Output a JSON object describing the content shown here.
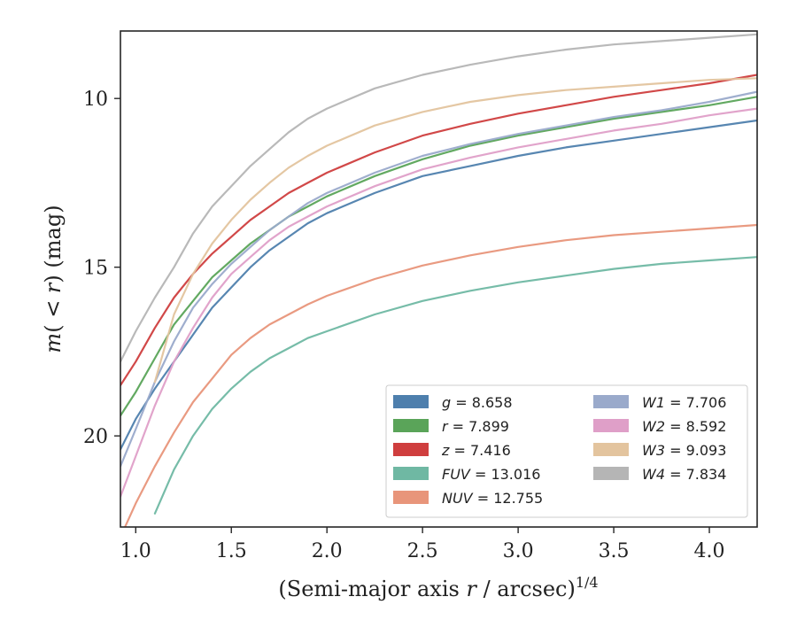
{
  "chart_data": {
    "type": "line",
    "title": "",
    "xlabel": "(Semi-major axis r / arcsec)^1/4",
    "ylabel": "m(< r) (mag)",
    "xlim": [
      0.92,
      4.25
    ],
    "ylim": [
      22.7,
      8.0
    ],
    "y_inverted": true,
    "grid": false,
    "legend_position": "lower-right",
    "x_ticks": [
      "1.0",
      "1.5",
      "2.0",
      "2.5",
      "3.0",
      "3.5",
      "4.0"
    ],
    "y_ticks": [
      "10",
      "15",
      "20"
    ],
    "series": [
      {
        "name": "g",
        "legend_value": "8.658",
        "color": "#4e7fad",
        "points": [
          [
            0.92,
            20.4
          ],
          [
            1.0,
            19.5
          ],
          [
            1.1,
            18.6
          ],
          [
            1.2,
            17.8
          ],
          [
            1.3,
            17.0
          ],
          [
            1.4,
            16.2
          ],
          [
            1.5,
            15.6
          ],
          [
            1.6,
            15.0
          ],
          [
            1.7,
            14.5
          ],
          [
            1.8,
            14.1
          ],
          [
            1.9,
            13.7
          ],
          [
            2.0,
            13.4
          ],
          [
            2.25,
            12.8
          ],
          [
            2.5,
            12.3
          ],
          [
            2.75,
            12.0
          ],
          [
            3.0,
            11.7
          ],
          [
            3.25,
            11.45
          ],
          [
            3.5,
            11.25
          ],
          [
            3.75,
            11.05
          ],
          [
            4.0,
            10.85
          ],
          [
            4.25,
            10.65
          ]
        ]
      },
      {
        "name": "r",
        "legend_value": "7.899",
        "color": "#5aa459",
        "points": [
          [
            0.92,
            19.4
          ],
          [
            1.0,
            18.7
          ],
          [
            1.1,
            17.7
          ],
          [
            1.2,
            16.7
          ],
          [
            1.3,
            16.0
          ],
          [
            1.4,
            15.3
          ],
          [
            1.5,
            14.8
          ],
          [
            1.6,
            14.3
          ],
          [
            1.7,
            13.9
          ],
          [
            1.8,
            13.5
          ],
          [
            1.9,
            13.2
          ],
          [
            2.0,
            12.9
          ],
          [
            2.25,
            12.3
          ],
          [
            2.5,
            11.8
          ],
          [
            2.75,
            11.4
          ],
          [
            3.0,
            11.1
          ],
          [
            3.25,
            10.85
          ],
          [
            3.5,
            10.6
          ],
          [
            3.75,
            10.4
          ],
          [
            4.0,
            10.2
          ],
          [
            4.25,
            9.95
          ]
        ]
      },
      {
        "name": "z",
        "legend_value": "7.416",
        "color": "#cf3e3e",
        "points": [
          [
            0.92,
            18.5
          ],
          [
            1.0,
            17.8
          ],
          [
            1.1,
            16.8
          ],
          [
            1.2,
            15.9
          ],
          [
            1.3,
            15.2
          ],
          [
            1.4,
            14.6
          ],
          [
            1.5,
            14.1
          ],
          [
            1.6,
            13.6
          ],
          [
            1.7,
            13.2
          ],
          [
            1.8,
            12.8
          ],
          [
            1.9,
            12.5
          ],
          [
            2.0,
            12.2
          ],
          [
            2.25,
            11.6
          ],
          [
            2.5,
            11.1
          ],
          [
            2.75,
            10.75
          ],
          [
            3.0,
            10.45
          ],
          [
            3.25,
            10.2
          ],
          [
            3.5,
            9.95
          ],
          [
            3.75,
            9.75
          ],
          [
            4.0,
            9.55
          ],
          [
            4.25,
            9.3
          ]
        ]
      },
      {
        "name": "FUV",
        "legend_value": "13.016",
        "color": "#6fb8a3",
        "points": [
          [
            1.1,
            22.3
          ],
          [
            1.2,
            21.0
          ],
          [
            1.3,
            20.0
          ],
          [
            1.4,
            19.2
          ],
          [
            1.5,
            18.6
          ],
          [
            1.6,
            18.1
          ],
          [
            1.7,
            17.7
          ],
          [
            1.8,
            17.4
          ],
          [
            1.9,
            17.1
          ],
          [
            2.0,
            16.9
          ],
          [
            2.25,
            16.4
          ],
          [
            2.5,
            16.0
          ],
          [
            2.75,
            15.7
          ],
          [
            3.0,
            15.45
          ],
          [
            3.25,
            15.25
          ],
          [
            3.5,
            15.05
          ],
          [
            3.75,
            14.9
          ],
          [
            4.0,
            14.8
          ],
          [
            4.25,
            14.7
          ]
        ]
      },
      {
        "name": "NUV",
        "legend_value": "12.755",
        "color": "#e8957a",
        "points": [
          [
            0.92,
            23.0
          ],
          [
            1.0,
            22.0
          ],
          [
            1.1,
            20.9
          ],
          [
            1.2,
            19.9
          ],
          [
            1.3,
            19.0
          ],
          [
            1.4,
            18.3
          ],
          [
            1.5,
            17.6
          ],
          [
            1.6,
            17.1
          ],
          [
            1.7,
            16.7
          ],
          [
            1.8,
            16.4
          ],
          [
            1.9,
            16.1
          ],
          [
            2.0,
            15.85
          ],
          [
            2.25,
            15.35
          ],
          [
            2.5,
            14.95
          ],
          [
            2.75,
            14.65
          ],
          [
            3.0,
            14.4
          ],
          [
            3.25,
            14.2
          ],
          [
            3.5,
            14.05
          ],
          [
            3.75,
            13.95
          ],
          [
            4.0,
            13.85
          ],
          [
            4.25,
            13.75
          ]
        ]
      },
      {
        "name": "W1",
        "legend_value": "7.706",
        "color": "#9aaacb",
        "points": [
          [
            0.92,
            20.9
          ],
          [
            1.0,
            19.8
          ],
          [
            1.1,
            18.4
          ],
          [
            1.2,
            17.2
          ],
          [
            1.3,
            16.2
          ],
          [
            1.4,
            15.5
          ],
          [
            1.5,
            14.9
          ],
          [
            1.6,
            14.4
          ],
          [
            1.7,
            13.9
          ],
          [
            1.8,
            13.5
          ],
          [
            1.9,
            13.1
          ],
          [
            2.0,
            12.8
          ],
          [
            2.25,
            12.2
          ],
          [
            2.5,
            11.7
          ],
          [
            2.75,
            11.35
          ],
          [
            3.0,
            11.05
          ],
          [
            3.25,
            10.8
          ],
          [
            3.5,
            10.55
          ],
          [
            3.75,
            10.35
          ],
          [
            4.0,
            10.1
          ],
          [
            4.25,
            9.8
          ]
        ]
      },
      {
        "name": "W2",
        "legend_value": "8.592",
        "color": "#df9fc8",
        "points": [
          [
            0.92,
            21.8
          ],
          [
            1.0,
            20.6
          ],
          [
            1.1,
            19.1
          ],
          [
            1.2,
            17.8
          ],
          [
            1.3,
            16.8
          ],
          [
            1.4,
            15.9
          ],
          [
            1.5,
            15.2
          ],
          [
            1.6,
            14.7
          ],
          [
            1.7,
            14.2
          ],
          [
            1.8,
            13.8
          ],
          [
            1.9,
            13.5
          ],
          [
            2.0,
            13.2
          ],
          [
            2.25,
            12.6
          ],
          [
            2.5,
            12.1
          ],
          [
            2.75,
            11.75
          ],
          [
            3.0,
            11.45
          ],
          [
            3.25,
            11.2
          ],
          [
            3.5,
            10.95
          ],
          [
            3.75,
            10.75
          ],
          [
            4.0,
            10.5
          ],
          [
            4.25,
            10.3
          ]
        ]
      },
      {
        "name": "W3",
        "legend_value": "9.093",
        "color": "#e3c49e",
        "points": [
          [
            1.1,
            18.4
          ],
          [
            1.2,
            16.4
          ],
          [
            1.3,
            15.2
          ],
          [
            1.4,
            14.3
          ],
          [
            1.5,
            13.6
          ],
          [
            1.6,
            13.0
          ],
          [
            1.7,
            12.5
          ],
          [
            1.8,
            12.05
          ],
          [
            1.9,
            11.7
          ],
          [
            2.0,
            11.4
          ],
          [
            2.25,
            10.8
          ],
          [
            2.5,
            10.4
          ],
          [
            2.75,
            10.1
          ],
          [
            3.0,
            9.9
          ],
          [
            3.25,
            9.75
          ],
          [
            3.5,
            9.65
          ],
          [
            3.75,
            9.55
          ],
          [
            4.0,
            9.45
          ],
          [
            4.25,
            9.4
          ]
        ]
      },
      {
        "name": "W4",
        "legend_value": "7.834",
        "color": "#b5b5b5",
        "points": [
          [
            0.92,
            17.8
          ],
          [
            1.0,
            16.9
          ],
          [
            1.1,
            15.9
          ],
          [
            1.2,
            15.0
          ],
          [
            1.3,
            14.0
          ],
          [
            1.4,
            13.2
          ],
          [
            1.5,
            12.6
          ],
          [
            1.6,
            12.0
          ],
          [
            1.7,
            11.5
          ],
          [
            1.8,
            11.0
          ],
          [
            1.9,
            10.6
          ],
          [
            2.0,
            10.3
          ],
          [
            2.25,
            9.7
          ],
          [
            2.5,
            9.3
          ],
          [
            2.75,
            9.0
          ],
          [
            3.0,
            8.75
          ],
          [
            3.25,
            8.55
          ],
          [
            3.5,
            8.4
          ],
          [
            3.75,
            8.3
          ],
          [
            4.0,
            8.2
          ],
          [
            4.25,
            8.1
          ]
        ]
      }
    ]
  }
}
